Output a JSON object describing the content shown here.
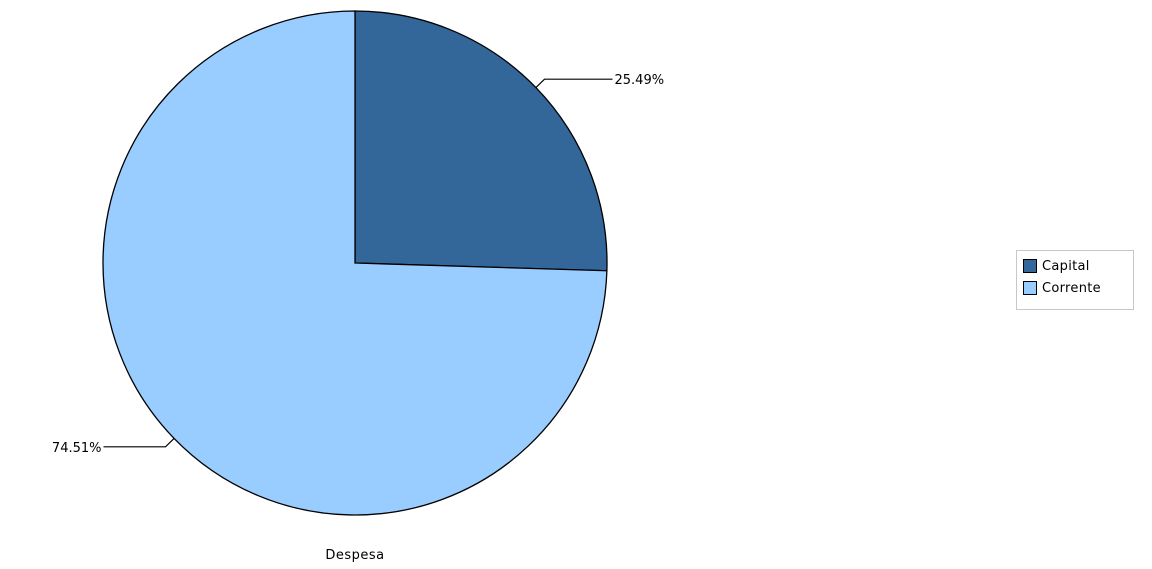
{
  "chart_data": {
    "type": "pie",
    "title": "",
    "xlabel": "Despesa",
    "categories": [
      "Capital",
      "Corrente"
    ],
    "values": [
      25.49,
      74.51
    ],
    "slice_labels": [
      "25.49%",
      "74.51%"
    ],
    "colors": [
      "#336699",
      "#99ccff"
    ],
    "start_angle_deg": 0,
    "direction": "clockwise",
    "legend": {
      "position": "right",
      "entries": [
        "Capital",
        "Corrente"
      ]
    }
  }
}
